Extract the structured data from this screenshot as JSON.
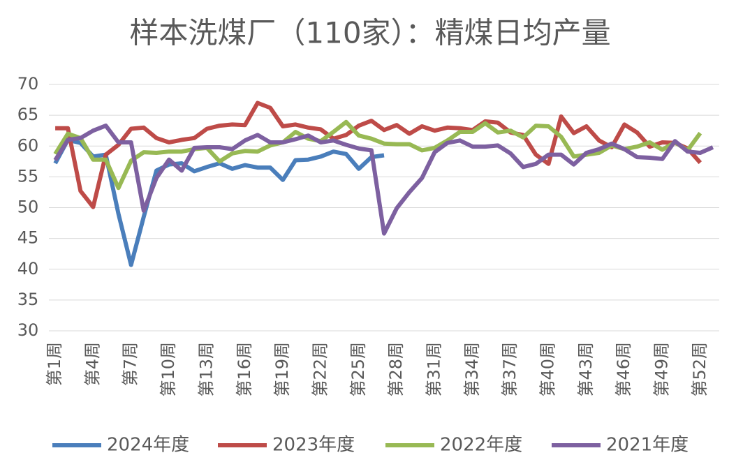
{
  "chart_data": {
    "type": "line",
    "title": "样本洗煤厂（110家）：精煤日均产量",
    "categories": [
      "第1周",
      null,
      null,
      "第4周",
      null,
      null,
      "第7周",
      null,
      null,
      "第10周",
      null,
      null,
      "第13周",
      null,
      null,
      "第16周",
      null,
      null,
      "第19周",
      null,
      null,
      "第22周",
      null,
      null,
      "第25周",
      null,
      null,
      "第28周",
      null,
      null,
      "第31周",
      null,
      null,
      "第34周",
      null,
      null,
      "第37周",
      null,
      null,
      "第40周",
      null,
      null,
      "第43周",
      null,
      null,
      "第46周",
      null,
      null,
      "第49周",
      null,
      null,
      "第52周",
      null
    ],
    "ylim": [
      30,
      70
    ],
    "yticks": [
      30,
      35,
      40,
      45,
      50,
      55,
      60,
      65,
      70
    ],
    "grid": true,
    "legend": "bottom",
    "series": [
      {
        "name": "2024年度",
        "color": "#4a7ebb",
        "values": [
          57.2,
          61.0,
          60.5,
          58.3,
          58.6,
          49.0,
          40.7,
          48.5,
          56.0,
          57.0,
          57.2,
          55.9,
          56.6,
          57.2,
          56.3,
          56.9,
          56.5,
          56.5,
          54.5,
          57.7,
          57.8,
          58.3,
          59.1,
          58.7,
          56.3,
          58.2,
          58.5,
          null,
          null,
          null,
          null,
          null,
          null,
          null,
          null,
          null,
          null,
          null,
          null,
          null,
          null,
          null,
          null,
          null,
          null,
          null,
          null,
          null,
          null,
          null,
          null,
          null,
          null
        ]
      },
      {
        "name": "2023年度",
        "color": "#be4b48",
        "values": [
          62.9,
          62.9,
          52.7,
          50.1,
          58.6,
          60.2,
          62.8,
          63.0,
          61.3,
          60.6,
          61.0,
          61.3,
          62.8,
          63.3,
          63.5,
          63.4,
          67.0,
          66.2,
          63.2,
          63.5,
          63.0,
          62.7,
          61.2,
          61.8,
          63.3,
          64.1,
          62.6,
          63.4,
          62.0,
          63.2,
          62.5,
          63.0,
          62.9,
          62.6,
          64.0,
          63.8,
          62.2,
          61.8,
          58.6,
          57.1,
          64.8,
          62.1,
          63.2,
          60.9,
          59.8,
          63.5,
          62.2,
          59.9,
          60.6,
          60.5,
          59.6,
          57.3,
          null
        ]
      },
      {
        "name": "2022年度",
        "color": "#98b954",
        "values": [
          58.7,
          62.0,
          61.3,
          57.8,
          57.8,
          53.2,
          57.6,
          59.0,
          58.9,
          59.1,
          59.1,
          59.5,
          59.7,
          57.5,
          58.8,
          59.2,
          59.1,
          60.1,
          60.6,
          62.3,
          61.2,
          60.8,
          62.3,
          63.9,
          61.7,
          61.2,
          60.4,
          60.3,
          60.3,
          59.3,
          59.7,
          60.9,
          62.3,
          62.3,
          63.7,
          62.2,
          62.5,
          61.4,
          63.3,
          63.2,
          61.5,
          58.3,
          58.6,
          58.9,
          60.1,
          59.5,
          59.9,
          60.6,
          59.4,
          60.6,
          59.3,
          62.1,
          null
        ]
      },
      {
        "name": "2021年度",
        "color": "#7d60a0",
        "values": [
          57.7,
          61.0,
          61.3,
          62.5,
          63.3,
          60.6,
          60.6,
          49.5,
          54.8,
          57.8,
          56.0,
          59.7,
          59.8,
          59.8,
          59.5,
          60.9,
          61.8,
          60.6,
          60.6,
          61.1,
          61.7,
          60.6,
          60.9,
          60.2,
          59.6,
          59.3,
          45.8,
          49.9,
          52.5,
          54.8,
          59.0,
          60.5,
          60.9,
          59.9,
          59.9,
          60.1,
          58.8,
          56.6,
          57.1,
          58.6,
          58.6,
          57.0,
          58.9,
          59.5,
          60.4,
          59.5,
          58.2,
          58.1,
          57.9,
          60.8,
          59.1,
          58.9,
          59.8
        ]
      }
    ]
  }
}
